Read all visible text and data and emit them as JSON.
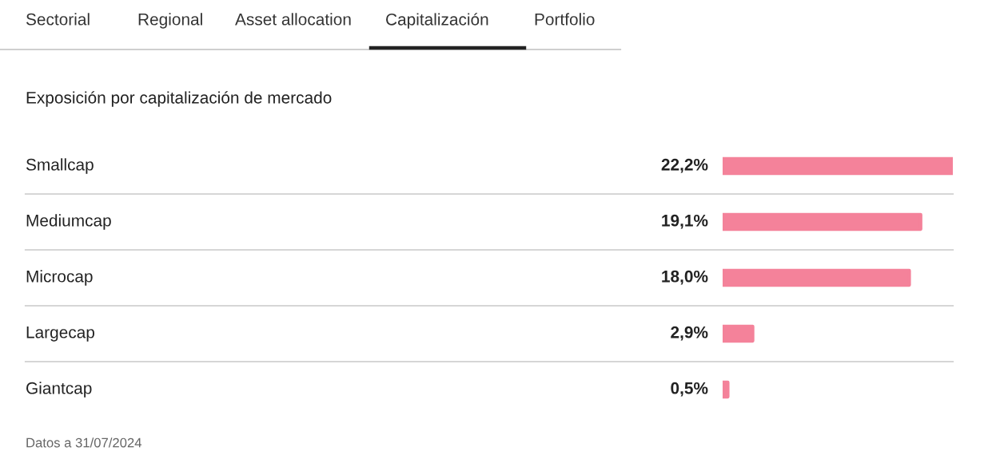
{
  "chart_data": {
    "type": "bar",
    "orientation": "horizontal",
    "title": "Exposición por capitalización de mercado",
    "categories": [
      "Smallcap",
      "Mediumcap",
      "Microcap",
      "Largecap",
      "Giantcap"
    ],
    "values": [
      22.2,
      19.1,
      18.0,
      2.9,
      0.5
    ],
    "value_labels": [
      "22,2%",
      "19,1%",
      "18,0%",
      "2,9%",
      "0,5%"
    ],
    "color": "#f4829a",
    "annotations": [
      "Sectorial",
      "Regional",
      "Asset allocation",
      "Capitalización",
      "Portfolio",
      "Datos a 31/07/2024"
    ]
  }
}
